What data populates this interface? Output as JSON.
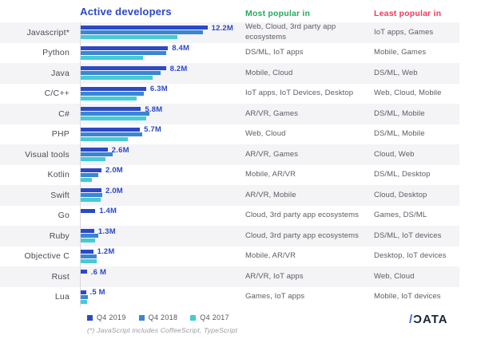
{
  "title": "Active developers",
  "chart_data": {
    "type": "bar",
    "orientation": "horizontal",
    "title": "Active developers",
    "categories": [
      "Javascript*",
      "Python",
      "Java",
      "C/C++",
      "C#",
      "PHP",
      "Visual tools",
      "Kotlin",
      "Swift",
      "Go",
      "Ruby",
      "Objective C",
      "Rust",
      "Lua"
    ],
    "value_labels": [
      "12.2M",
      "8.4M",
      "8.2M",
      "6.3M",
      "5.8M",
      "5.7M",
      "2.6M",
      "2.0M",
      "2.0M",
      "1.4M",
      "1.3M",
      "1.2M",
      ".6 M",
      ".5 M"
    ],
    "unit": "millions of active developers",
    "xlim": [
      0,
      13.5
    ],
    "legend_position": "bottom",
    "series": [
      {
        "name": "Q4 2019",
        "color": "#2c49c7",
        "values": [
          12.2,
          8.4,
          8.2,
          6.3,
          5.8,
          5.7,
          2.6,
          2.0,
          2.0,
          1.4,
          1.3,
          1.2,
          0.6,
          0.5
        ]
      },
      {
        "name": "Q4 2018",
        "color": "#3a86d1",
        "values": [
          11.8,
          8.2,
          7.7,
          6.1,
          6.6,
          5.9,
          3.1,
          1.7,
          2.1,
          null,
          1.7,
          1.5,
          null,
          0.7
        ]
      },
      {
        "name": "Q4 2017",
        "color": "#45cbd4",
        "values": [
          9.3,
          6.0,
          6.9,
          5.4,
          6.3,
          4.5,
          2.4,
          1.1,
          1.9,
          null,
          1.4,
          1.5,
          null,
          0.6
        ]
      }
    ],
    "footnote": "(*) JavaScript includes CoffeeScript, TypeScript"
  },
  "columns": {
    "most": {
      "header": "Most popular in",
      "color": "#27a85e",
      "values": [
        "Web, Cloud, 3rd party app ecosystems",
        "DS/ML, IoT apps",
        "Mobile, Cloud",
        "IoT apps, IoT Devices, Desktop",
        "AR/VR, Games",
        "Web, Cloud",
        "AR/VR, Games",
        "Mobile, AR/VR",
        "AR/VR, Mobile",
        "Cloud, 3rd party app ecosystems",
        "Cloud, 3rd party app ecosystems",
        "Mobile, AR/VR",
        "AR/VR, IoT apps",
        "Games, IoT apps"
      ]
    },
    "least": {
      "header": "Least popular in",
      "color": "#f23a5c",
      "values": [
        "IoT apps, Games",
        "Mobile, Games",
        "DS/ML, Web",
        "Web, Cloud, Mobile",
        "DS/ML, Mobile",
        "DS/ML, Mobile",
        "Cloud, Web",
        "DS/ML, Desktop",
        "Cloud, Desktop",
        "Games, DS/ML",
        "DS/ML, IoT devices",
        "Desktop, IoT devices",
        "Web, Cloud",
        "Mobile, IoT devices"
      ]
    }
  },
  "footnote": "(*) JavaScript includes CoffeeScript, TypeScript",
  "logo": {
    "slash": "/",
    "word": "ƆATA"
  }
}
